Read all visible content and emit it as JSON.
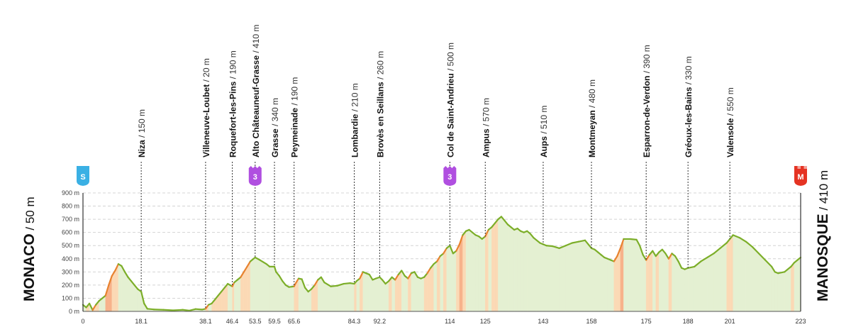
{
  "chart_data": {
    "type": "area",
    "ylim": [
      0,
      900
    ],
    "xlim": [
      0,
      223
    ],
    "y_ticks": [
      "0 m",
      "100 m",
      "200 m",
      "300 m",
      "400 m",
      "500 m",
      "600 m",
      "700 m",
      "800 m",
      "900 m"
    ],
    "start": {
      "name": "MONACO",
      "altitude": "50 m",
      "badge": "S"
    },
    "finish": {
      "name": "MANOSQUE",
      "altitude": "410 m",
      "badge": "M"
    },
    "points": [
      {
        "label": "Niza",
        "altitude": "150 m",
        "km": 18.1,
        "km_label": "18.1"
      },
      {
        "label": "Villeneuve-Loubet",
        "altitude": "20 m",
        "km": 38.1,
        "km_label": "38.1"
      },
      {
        "label": "Roquefort-les-Pins",
        "altitude": "190 m",
        "km": 46.4,
        "km_label": "46.4"
      },
      {
        "label": "Alto Châteauneuf-Grasse",
        "altitude": "410 m",
        "km": 53.5,
        "km_label": "53.5",
        "badge": "3"
      },
      {
        "label": "Grasse",
        "altitude": "340 m",
        "km": 59.5,
        "km_label": "59.5"
      },
      {
        "label": "Peymeinade",
        "altitude": "190 m",
        "km": 65.6,
        "km_label": "65.6"
      },
      {
        "label": "Lombardie",
        "altitude": "210 m",
        "km": 84.3,
        "km_label": "84.3"
      },
      {
        "label": "Brovès en Seillans",
        "altitude": "260 m",
        "km": 92.2,
        "km_label": "92.2"
      },
      {
        "label": "Col de Saint-Andrieu",
        "altitude": "500 m",
        "km": 114,
        "km_label": "114",
        "badge": "3"
      },
      {
        "label": "Ampus",
        "altitude": "570 m",
        "km": 125,
        "km_label": "125"
      },
      {
        "label": "Aups",
        "altitude": "510 m",
        "km": 143,
        "km_label": "143"
      },
      {
        "label": "Montmeyan",
        "altitude": "480 m",
        "km": 158,
        "km_label": "158"
      },
      {
        "label": "Esparron-de-Verdon",
        "altitude": "390 m",
        "km": 175,
        "km_label": "175"
      },
      {
        "label": "Gréoux-les-Bains",
        "altitude": "330 m",
        "km": 188,
        "km_label": "188"
      },
      {
        "label": "Valensole",
        "altitude": "550 m",
        "km": 201,
        "km_label": "201"
      }
    ],
    "x_ticks": [
      "0",
      "18.1",
      "38.1",
      "46.4",
      "53.5",
      "59.5",
      "65.6",
      "84.3",
      "92.2",
      "114",
      "125",
      "143",
      "158",
      "175",
      "188",
      "201",
      "223"
    ],
    "profile": [
      [
        0,
        50
      ],
      [
        1,
        30
      ],
      [
        2,
        60
      ],
      [
        3,
        10
      ],
      [
        4,
        50
      ],
      [
        5,
        80
      ],
      [
        6,
        100
      ],
      [
        7,
        120
      ],
      [
        8,
        200
      ],
      [
        9,
        270
      ],
      [
        10,
        310
      ],
      [
        11,
        360
      ],
      [
        12,
        345
      ],
      [
        13,
        300
      ],
      [
        14,
        260
      ],
      [
        15,
        230
      ],
      [
        16,
        200
      ],
      [
        17,
        170
      ],
      [
        18.1,
        150
      ],
      [
        19,
        60
      ],
      [
        20,
        20
      ],
      [
        22,
        15
      ],
      [
        25,
        12
      ],
      [
        28,
        8
      ],
      [
        31,
        12
      ],
      [
        33,
        6
      ],
      [
        35,
        18
      ],
      [
        37,
        14
      ],
      [
        38.1,
        20
      ],
      [
        39,
        50
      ],
      [
        40,
        60
      ],
      [
        41,
        90
      ],
      [
        42,
        120
      ],
      [
        43,
        150
      ],
      [
        44,
        180
      ],
      [
        45,
        210
      ],
      [
        46.4,
        190
      ],
      [
        47,
        220
      ],
      [
        48,
        240
      ],
      [
        49,
        260
      ],
      [
        50,
        300
      ],
      [
        51,
        340
      ],
      [
        52,
        380
      ],
      [
        53.5,
        410
      ],
      [
        55,
        390
      ],
      [
        57,
        360
      ],
      [
        58,
        340
      ],
      [
        59.5,
        340
      ],
      [
        60,
        300
      ],
      [
        61,
        270
      ],
      [
        62,
        230
      ],
      [
        63,
        200
      ],
      [
        64,
        185
      ],
      [
        65.6,
        190
      ],
      [
        66,
        210
      ],
      [
        67,
        250
      ],
      [
        68,
        245
      ],
      [
        69,
        180
      ],
      [
        70,
        150
      ],
      [
        71,
        170
      ],
      [
        72,
        200
      ],
      [
        73,
        240
      ],
      [
        74,
        260
      ],
      [
        75,
        220
      ],
      [
        77,
        190
      ],
      [
        79,
        195
      ],
      [
        81,
        210
      ],
      [
        83,
        215
      ],
      [
        84.3,
        210
      ],
      [
        85,
        230
      ],
      [
        86,
        250
      ],
      [
        87,
        300
      ],
      [
        88,
        290
      ],
      [
        89,
        280
      ],
      [
        90,
        240
      ],
      [
        91,
        250
      ],
      [
        92.2,
        260
      ],
      [
        93,
        240
      ],
      [
        94,
        210
      ],
      [
        95,
        230
      ],
      [
        96,
        260
      ],
      [
        97,
        240
      ],
      [
        98,
        280
      ],
      [
        99,
        310
      ],
      [
        100,
        270
      ],
      [
        101,
        250
      ],
      [
        102,
        290
      ],
      [
        103,
        300
      ],
      [
        104,
        260
      ],
      [
        105,
        250
      ],
      [
        106,
        260
      ],
      [
        107,
        290
      ],
      [
        108,
        330
      ],
      [
        109,
        360
      ],
      [
        110,
        380
      ],
      [
        111,
        420
      ],
      [
        112,
        440
      ],
      [
        113,
        480
      ],
      [
        114,
        500
      ],
      [
        115,
        440
      ],
      [
        116,
        460
      ],
      [
        117,
        510
      ],
      [
        118,
        580
      ],
      [
        119,
        610
      ],
      [
        120,
        620
      ],
      [
        121,
        600
      ],
      [
        122,
        580
      ],
      [
        123,
        570
      ],
      [
        124,
        550
      ],
      [
        125,
        570
      ],
      [
        126,
        620
      ],
      [
        127,
        640
      ],
      [
        128,
        670
      ],
      [
        129,
        700
      ],
      [
        130,
        720
      ],
      [
        131,
        690
      ],
      [
        132,
        660
      ],
      [
        133,
        640
      ],
      [
        134,
        620
      ],
      [
        135,
        630
      ],
      [
        136,
        610
      ],
      [
        137,
        600
      ],
      [
        138,
        610
      ],
      [
        139,
        590
      ],
      [
        140,
        560
      ],
      [
        141,
        540
      ],
      [
        142,
        520
      ],
      [
        143,
        510
      ],
      [
        144,
        500
      ],
      [
        146,
        495
      ],
      [
        148,
        480
      ],
      [
        150,
        500
      ],
      [
        152,
        520
      ],
      [
        154,
        530
      ],
      [
        156,
        540
      ],
      [
        157,
        510
      ],
      [
        158,
        480
      ],
      [
        159,
        470
      ],
      [
        160,
        450
      ],
      [
        161,
        430
      ],
      [
        162,
        410
      ],
      [
        163,
        400
      ],
      [
        164,
        390
      ],
      [
        165,
        380
      ],
      [
        166,
        420
      ],
      [
        167,
        480
      ],
      [
        168,
        550
      ],
      [
        170,
        550
      ],
      [
        172,
        545
      ],
      [
        173,
        500
      ],
      [
        174,
        430
      ],
      [
        175,
        390
      ],
      [
        176,
        430
      ],
      [
        177,
        460
      ],
      [
        178,
        420
      ],
      [
        179,
        450
      ],
      [
        180,
        470
      ],
      [
        181,
        440
      ],
      [
        182,
        400
      ],
      [
        183,
        440
      ],
      [
        184,
        420
      ],
      [
        185,
        380
      ],
      [
        186,
        330
      ],
      [
        187,
        320
      ],
      [
        188,
        330
      ],
      [
        190,
        340
      ],
      [
        192,
        380
      ],
      [
        194,
        410
      ],
      [
        196,
        440
      ],
      [
        198,
        480
      ],
      [
        200,
        520
      ],
      [
        201,
        550
      ],
      [
        202,
        580
      ],
      [
        204,
        560
      ],
      [
        206,
        530
      ],
      [
        208,
        490
      ],
      [
        210,
        440
      ],
      [
        212,
        390
      ],
      [
        214,
        340
      ],
      [
        215,
        300
      ],
      [
        216,
        290
      ],
      [
        218,
        300
      ],
      [
        220,
        340
      ],
      [
        221,
        370
      ],
      [
        222,
        390
      ],
      [
        223,
        410
      ]
    ]
  },
  "colors": {
    "line": "#7cae29",
    "fill_flat": "#e4f0d2",
    "fill_climb": "#fbd9b5",
    "fill_steep": "#f7b28b",
    "line_climb": "#e8822f",
    "sprint_badge": "#3ab0e4",
    "kom_badge": "#b04fe0",
    "finish_badge": "#e53323"
  },
  "icons": [
    "sprint-flag-icon",
    "kom-cat3-icon",
    "finish-flag-icon"
  ]
}
